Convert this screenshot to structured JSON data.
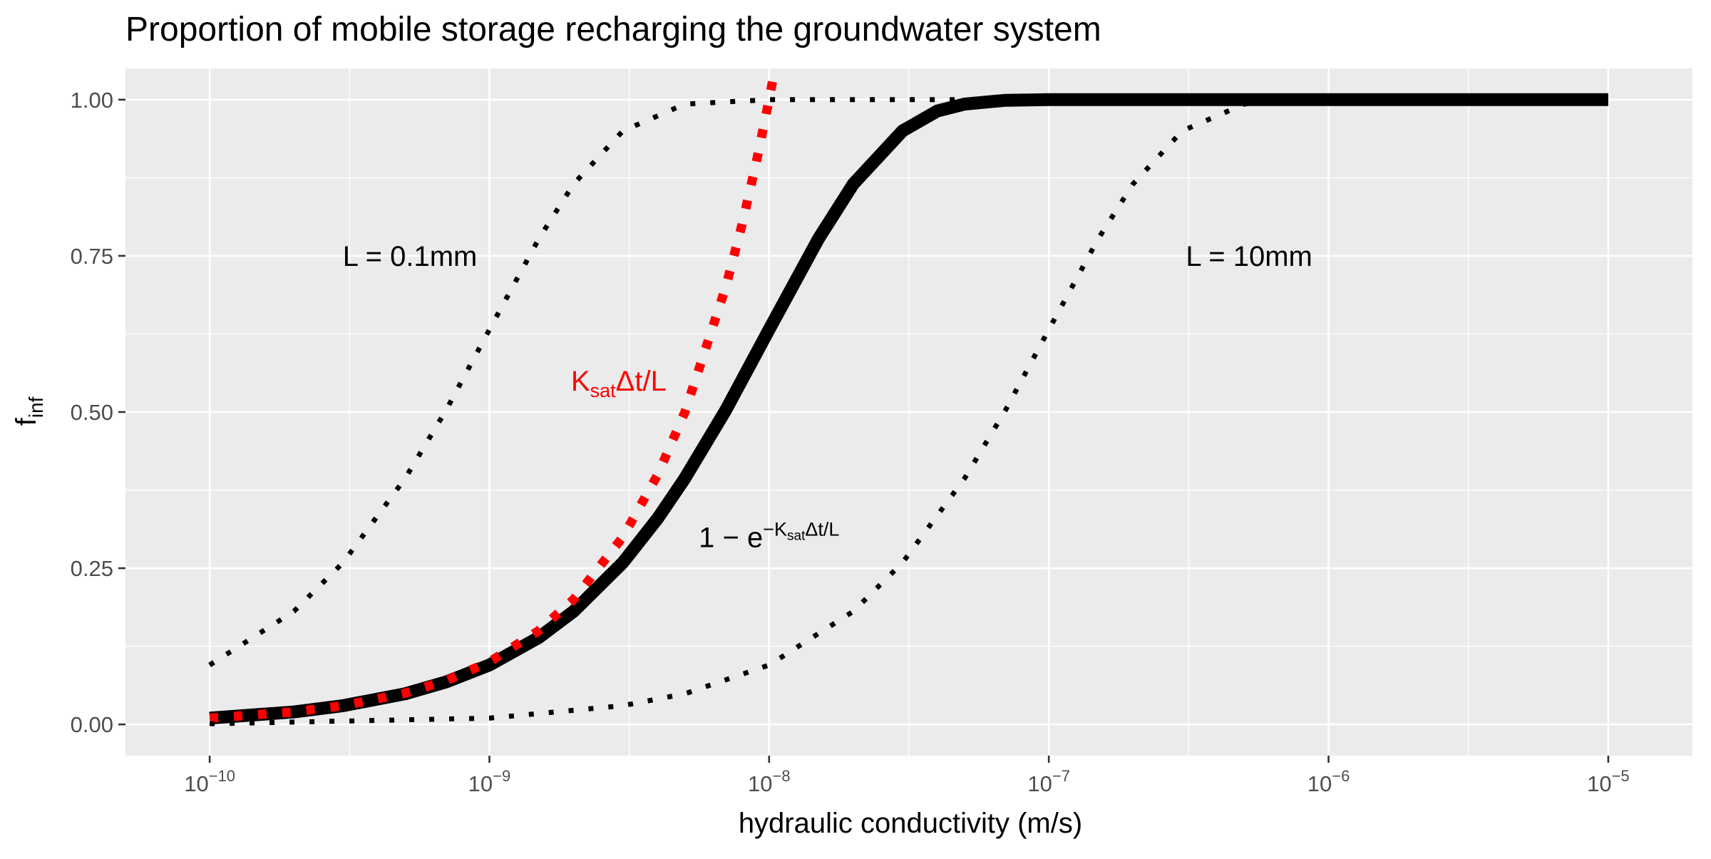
{
  "chart_data": {
    "type": "line",
    "title": "Proportion of mobile storage recharging the groundwater system",
    "xlabel": "hydraulic conductivity (m/s)",
    "ylabel": "f",
    "ylabel_sub": "inf",
    "x_scale": "log10",
    "xlim": [
      5e-11,
      2e-05
    ],
    "ylim": [
      -0.05,
      1.05
    ],
    "x_ticks": [
      {
        "value": 1e-10,
        "base": "10",
        "exp": "−10"
      },
      {
        "value": 1e-09,
        "base": "10",
        "exp": "−9"
      },
      {
        "value": 1e-08,
        "base": "10",
        "exp": "−8"
      },
      {
        "value": 1e-07,
        "base": "10",
        "exp": "−7"
      },
      {
        "value": 1e-06,
        "base": "10",
        "exp": "−6"
      },
      {
        "value": 1e-05,
        "base": "10",
        "exp": "−5"
      }
    ],
    "y_ticks": [
      {
        "value": 0,
        "label": "0.00"
      },
      {
        "value": 0.25,
        "label": "0.25"
      },
      {
        "value": 0.5,
        "label": "0.50"
      },
      {
        "value": 0.75,
        "label": "0.75"
      },
      {
        "value": 1,
        "label": "1.00"
      }
    ],
    "grid": true,
    "series": [
      {
        "style": "solid",
        "color": "#000000",
        "x": [
          1e-10,
          2e-10,
          3e-10,
          5e-10,
          7e-10,
          1e-09,
          1.5e-09,
          2e-09,
          3e-09,
          4e-09,
          5e-09,
          7e-09,
          1e-08,
          1.5e-08,
          2e-08,
          3e-08,
          4e-08,
          5e-08,
          7e-08,
          1e-07,
          2e-07,
          1e-06,
          1e-05
        ],
        "y": [
          0.01,
          0.02,
          0.03,
          0.049,
          0.068,
          0.095,
          0.139,
          0.181,
          0.259,
          0.33,
          0.394,
          0.503,
          0.632,
          0.777,
          0.865,
          0.95,
          0.982,
          0.993,
          0.999,
          1.0,
          1.0,
          1.0,
          1.0
        ]
      },
      {
        "style": "dotted",
        "color": "#ff0000",
        "x": [
          1e-10,
          2e-10,
          3e-10,
          5e-10,
          7e-10,
          1e-09,
          1.5e-09,
          2e-09,
          3e-09,
          4e-09,
          5e-09,
          7e-09,
          8e-09,
          9e-09,
          1e-08,
          1.1e-08,
          1.2e-08
        ],
        "y": [
          0.01,
          0.02,
          0.03,
          0.05,
          0.07,
          0.1,
          0.15,
          0.2,
          0.3,
          0.4,
          0.5,
          0.7,
          0.8,
          0.9,
          1.0,
          1.1,
          1.2
        ]
      },
      {
        "style": "dotted",
        "color": "#000000",
        "x": [
          1e-10,
          2e-10,
          3e-10,
          5e-10,
          7e-10,
          1e-09,
          1.5e-09,
          2e-09,
          3e-09,
          5e-09,
          1e-08,
          2e-08,
          5e-08
        ],
        "y": [
          0.095,
          0.181,
          0.259,
          0.394,
          0.503,
          0.632,
          0.777,
          0.865,
          0.95,
          0.993,
          1.0,
          1.0,
          1.0
        ]
      },
      {
        "style": "dotted",
        "color": "#000000",
        "x": [
          1e-10,
          1e-09,
          3e-09,
          5e-09,
          1e-08,
          2e-08,
          3e-08,
          5e-08,
          7e-08,
          1e-07,
          1.5e-07,
          2e-07,
          3e-07,
          5e-07,
          5.5e-07
        ],
        "y": [
          0.001,
          0.01,
          0.03,
          0.049,
          0.095,
          0.181,
          0.259,
          0.394,
          0.503,
          0.632,
          0.777,
          0.865,
          0.95,
          0.993,
          0.996
        ]
      }
    ],
    "annotations": [
      {
        "id": "label-l-small",
        "text": "L = 0.1mm",
        "x": 5.2e-10,
        "y": 0.75,
        "color": "#000000"
      },
      {
        "id": "label-l-large",
        "text": "L = 10mm",
        "x": 5.2e-07,
        "y": 0.75,
        "color": "#000000"
      },
      {
        "id": "label-linear",
        "text": "K",
        "sub": "sat",
        "rest": "Δt/L",
        "x": 2.9e-09,
        "y": 0.55,
        "color": "#ff0000"
      },
      {
        "id": "label-exp",
        "text": "1 − e",
        "sup": "−K",
        "supsub": "sat",
        "suprest": "Δt/L",
        "x": 1e-08,
        "y": 0.3,
        "color": "#000000"
      }
    ]
  }
}
